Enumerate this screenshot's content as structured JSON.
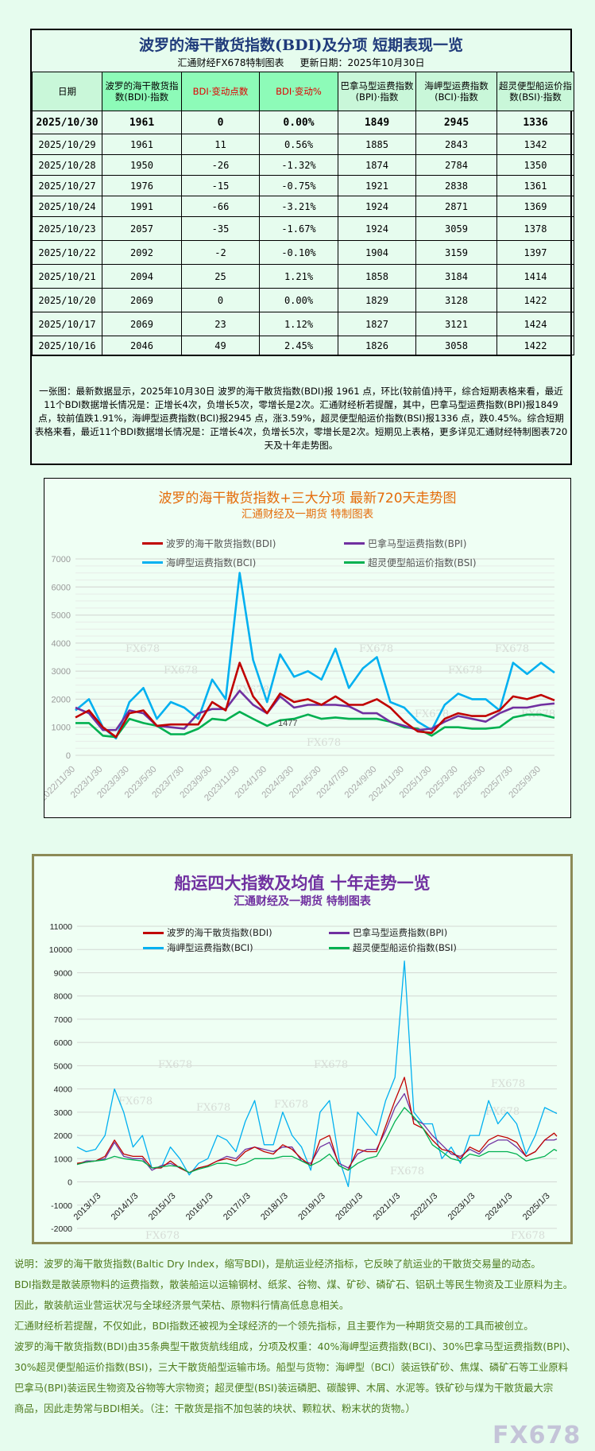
{
  "table": {
    "title": "波罗的海干散货指数(BDI)及分项 短期表现一览",
    "maker": "汇通财经FX678特制图表",
    "update": "更新日期：2025年10月30日",
    "headers": [
      "日期",
      "波罗的海干散货指数(BDI)·指数",
      "BDI·变动点数",
      "BDI·变动%",
      "巴拿马型运费指数(BPI)·指数",
      "海岬型运费指数(BCI)·指数",
      "超灵便型船运价指数(BSI)·指数"
    ],
    "header_colors": {
      "highlight": "#8dfbb8",
      "normal": "#c9f7d9",
      "red_text": "#e00000"
    },
    "rows": [
      [
        "2025/10/30",
        "1961",
        "0",
        "0.00%",
        "1849",
        "2945",
        "1336"
      ],
      [
        "2025/10/29",
        "1961",
        "11",
        "0.56%",
        "1885",
        "2843",
        "1342"
      ],
      [
        "2025/10/28",
        "1950",
        "-26",
        "-1.32%",
        "1874",
        "2784",
        "1350"
      ],
      [
        "2025/10/27",
        "1976",
        "-15",
        "-0.75%",
        "1921",
        "2838",
        "1361"
      ],
      [
        "2025/10/24",
        "1991",
        "-66",
        "-3.21%",
        "1924",
        "2871",
        "1369"
      ],
      [
        "2025/10/23",
        "2057",
        "-35",
        "-1.67%",
        "1924",
        "3059",
        "1378"
      ],
      [
        "2025/10/22",
        "2092",
        "-2",
        "-0.10%",
        "1904",
        "3159",
        "1397"
      ],
      [
        "2025/10/21",
        "2094",
        "25",
        "1.21%",
        "1858",
        "3184",
        "1414"
      ],
      [
        "2025/10/20",
        "2069",
        "0",
        "0.00%",
        "1829",
        "3128",
        "1422"
      ],
      [
        "2025/10/17",
        "2069",
        "23",
        "1.12%",
        "1827",
        "3121",
        "1424"
      ],
      [
        "2025/10/16",
        "2046",
        "49",
        "2.45%",
        "1826",
        "3058",
        "1422"
      ]
    ],
    "summary": "一张图：最新数据显示，2025年10月30日 波罗的海干散货指数(BDI)报 1961 点，环比(较前值)持平，综合短期表格来看，最近11个BDI数据增长情况是：正增长4次，负增长5次，零增长是2次。汇通财经析若提醒，其中，巴拿马型运费指数(BPI)报1849 点，较前值跌1.91%，海岬型运费指数(BCI)报2945 点，涨3.59%，超灵便型船运价指数(BSI)报1336 点，跌0.45%。综合短期表格来看，最近11个BDI数据增长情况是：正增长4次，负增长5次，零增长是2次。短期见上表格，更多详见汇通财经特制图表720天及十年走势图。"
  },
  "chart_data": [
    {
      "type": "line",
      "title": "波罗的海干散货指数+三大分项  最新720天走势图",
      "subtitle": "汇通财经及一期货  特制图表",
      "title_color": "#e46c0a",
      "xlabel": "",
      "ylabel": "",
      "xlim": [
        "2022/11/30",
        "2025/10/30"
      ],
      "ylim": [
        0,
        7000
      ],
      "yticks": [
        "0",
        "1000",
        "2000",
        "3000",
        "4000",
        "5000",
        "6000",
        "7000"
      ],
      "xticks": [
        "2022/11/30",
        "2023/1/30",
        "2023/3/30",
        "2023/5/30",
        "2023/7/30",
        "2023/9/30",
        "2023/11/30",
        "2024/1/30",
        "2024/3/30",
        "2024/5/30",
        "2024/7/30",
        "2024/9/30",
        "2024/11/30",
        "2025/1/30",
        "2025/3/30",
        "2025/5/30",
        "2025/7/30",
        "2025/9/30"
      ],
      "grid": true,
      "legend": "top",
      "annotation": "1477",
      "watermark": "FX678",
      "x": [
        "2022/11/30",
        "2022/12/30",
        "2023/1/30",
        "2023/2/28",
        "2023/3/30",
        "2023/4/30",
        "2023/5/30",
        "2023/6/30",
        "2023/7/30",
        "2023/8/30",
        "2023/9/30",
        "2023/10/30",
        "2023/11/30",
        "2023/12/30",
        "2024/1/30",
        "2024/2/28",
        "2024/3/30",
        "2024/4/30",
        "2024/5/30",
        "2024/6/30",
        "2024/7/30",
        "2024/8/30",
        "2024/9/30",
        "2024/10/30",
        "2024/11/30",
        "2024/12/30",
        "2025/1/30",
        "2025/2/28",
        "2025/3/30",
        "2025/4/30",
        "2025/5/30",
        "2025/6/30",
        "2025/7/30",
        "2025/8/30",
        "2025/9/30",
        "2025/10/30"
      ],
      "series": [
        {
          "name": "波罗的海干散货指数(BDI)",
          "color": "#c00000",
          "values": [
            1350,
            1600,
            1000,
            650,
            1500,
            1600,
            1050,
            1100,
            1100,
            1100,
            1900,
            1600,
            3300,
            2100,
            1500,
            2200,
            1900,
            2000,
            1800,
            2100,
            1800,
            1800,
            2000,
            1700,
            1200,
            850,
            800,
            1300,
            1500,
            1400,
            1400,
            1600,
            2100,
            2000,
            2150,
            1961
          ]
        },
        {
          "name": "巴拿马型运费指数(BPI)",
          "color": "#7030a0",
          "values": [
            1700,
            1500,
            900,
            900,
            1600,
            1500,
            1050,
            1000,
            950,
            1500,
            1650,
            1650,
            2300,
            1800,
            1500,
            2100,
            1700,
            1800,
            1800,
            1800,
            1750,
            1500,
            1500,
            1200,
            1050,
            900,
            950,
            1200,
            1400,
            1300,
            1200,
            1500,
            1700,
            1700,
            1800,
            1849
          ]
        },
        {
          "name": "海岬型运费指数(BCI)",
          "color": "#00b0f0",
          "values": [
            1600,
            2000,
            1000,
            600,
            1900,
            2400,
            1300,
            1900,
            1700,
            1300,
            2700,
            2000,
            6500,
            3400,
            1900,
            3600,
            2800,
            3000,
            2700,
            3800,
            2400,
            3100,
            3500,
            1900,
            1700,
            1200,
            900,
            1800,
            2200,
            2000,
            2000,
            1600,
            3300,
            2900,
            3300,
            2945
          ]
        },
        {
          "name": "超灵便型船运价指数(BSI)",
          "color": "#00b050",
          "values": [
            1150,
            1150,
            700,
            650,
            1300,
            1150,
            1050,
            750,
            750,
            950,
            1300,
            1250,
            1550,
            1300,
            1050,
            1250,
            1300,
            1450,
            1300,
            1350,
            1300,
            1300,
            1300,
            1200,
            1000,
            950,
            700,
            1000,
            1000,
            950,
            950,
            1000,
            1350,
            1450,
            1450,
            1336
          ]
        }
      ]
    },
    {
      "type": "line",
      "title": "船运四大指数及均值 十年走势一览",
      "subtitle": "汇通财经及一期货 特制图表",
      "title_color": "#7030a0",
      "xlabel": "",
      "ylabel": "",
      "xlim": [
        "2013/1/3",
        "2025/10/30"
      ],
      "ylim": [
        -2000,
        11000
      ],
      "yticks": [
        "-2000",
        "-1000",
        "0",
        "1000",
        "2000",
        "3000",
        "4000",
        "5000",
        "6000",
        "7000",
        "8000",
        "9000",
        "10000",
        "11000"
      ],
      "xticks": [
        "2013/1/3",
        "2014/1/3",
        "2015/1/3",
        "2016/1/3",
        "2017/1/3",
        "2018/1/3",
        "2019/1/3",
        "2020/1/3",
        "2021/1/3",
        "2022/1/3",
        "2023/1/3",
        "2024/1/3",
        "2025/1/3"
      ],
      "grid": true,
      "legend": "top",
      "watermark": "FX678",
      "x": [
        "2013/1/3",
        "2013/4/3",
        "2013/7/3",
        "2013/10/3",
        "2014/1/3",
        "2014/4/3",
        "2014/7/3",
        "2014/10/3",
        "2015/1/3",
        "2015/4/3",
        "2015/7/3",
        "2015/10/3",
        "2016/1/3",
        "2016/4/3",
        "2016/7/3",
        "2016/10/3",
        "2017/1/3",
        "2017/4/3",
        "2017/7/3",
        "2017/10/3",
        "2018/1/3",
        "2018/4/3",
        "2018/7/3",
        "2018/10/3",
        "2019/1/3",
        "2019/4/3",
        "2019/7/3",
        "2019/10/3",
        "2020/1/3",
        "2020/4/3",
        "2020/7/3",
        "2020/10/3",
        "2021/1/3",
        "2021/4/3",
        "2021/7/3",
        "2021/10/3",
        "2022/1/3",
        "2022/4/3",
        "2022/7/3",
        "2022/10/3",
        "2023/1/3",
        "2023/4/3",
        "2023/7/3",
        "2023/10/3",
        "2024/1/3",
        "2024/4/3",
        "2024/7/3",
        "2024/10/3",
        "2025/1/3",
        "2025/4/3",
        "2025/7/3",
        "2025/10/3",
        "2025/10/30"
      ],
      "series": [
        {
          "name": "波罗的海干散货指数(BDI)",
          "color": "#c00000",
          "values": [
            800,
            850,
            900,
            1100,
            1800,
            1200,
            1100,
            1100,
            600,
            600,
            900,
            600,
            400,
            600,
            700,
            900,
            1000,
            900,
            1300,
            1500,
            1300,
            1200,
            1600,
            1400,
            1000,
            700,
            1800,
            2000,
            700,
            500,
            1400,
            1300,
            1300,
            2400,
            3500,
            4500,
            2500,
            2300,
            1800,
            1400,
            1300,
            1000,
            1500,
            1300,
            1800,
            2000,
            1900,
            1700,
            1100,
            1300,
            1800,
            2100,
            1961
          ]
        },
        {
          "name": "巴拿马型运费指数(BPI)",
          "color": "#7030a0",
          "values": [
            750,
            900,
            900,
            1000,
            1700,
            1100,
            1000,
            1000,
            500,
            700,
            800,
            600,
            400,
            600,
            700,
            900,
            1100,
            1000,
            1400,
            1500,
            1400,
            1300,
            1500,
            1500,
            900,
            800,
            1500,
            1700,
            800,
            600,
            1200,
            1400,
            1400,
            2200,
            3200,
            3800,
            2700,
            2500,
            2000,
            1600,
            1200,
            1100,
            1400,
            1200,
            1600,
            1800,
            1800,
            1500,
            1100,
            1300,
            1800,
            1800,
            1849
          ]
        },
        {
          "name": "海岬型运费指数(BCI)",
          "color": "#00b0f0",
          "values": [
            1500,
            1300,
            1400,
            2000,
            4000,
            3000,
            1500,
            2000,
            600,
            600,
            1500,
            1000,
            300,
            800,
            1000,
            2000,
            1800,
            1300,
            2600,
            3500,
            1600,
            1600,
            3000,
            2000,
            1500,
            500,
            3000,
            3500,
            1000,
            -200,
            3000,
            2500,
            2000,
            3500,
            4500,
            9500,
            3000,
            2500,
            2500,
            1000,
            1500,
            800,
            2000,
            2000,
            3500,
            2500,
            3000,
            2500,
            1200,
            2000,
            3200,
            3000,
            2945
          ]
        },
        {
          "name": "超灵便型船运价指数(BSI)",
          "color": "#00b050",
          "values": [
            750,
            850,
            900,
            950,
            1100,
            1000,
            950,
            900,
            600,
            650,
            700,
            650,
            400,
            550,
            650,
            800,
            800,
            700,
            800,
            1000,
            1000,
            1000,
            1100,
            1100,
            900,
            700,
            900,
            1200,
            700,
            500,
            800,
            1000,
            1100,
            1800,
            2600,
            3200,
            2800,
            2300,
            1600,
            1300,
            1000,
            900,
            1200,
            1100,
            1300,
            1300,
            1300,
            1200,
            900,
            1000,
            1100,
            1400,
            1336
          ]
        }
      ]
    }
  ],
  "notes": [
    "说明：波罗的海干散货指数(Baltic Dry Index，缩写BDI)，是航运业经济指标，它反映了航运业的干散货交易量的动态。",
    "BDI指数是散装原物料的运费指数，散装船运以运输钢材、纸浆、谷物、煤、矿砂、磷矿石、铝矾土等民生物资及工业原料为主。",
    "因此，散装航运业营运状况与全球经济景气荣枯、原物料行情高低息息相关。",
    "汇通财经析若提醒，不仅如此，BDI指数还被视为全球经济的一个领先指标，且主要作为一种期货交易的工具而被创立。",
    "波罗的海干散货指数(BDI)由35条典型干散货航线组成，分项及权重：40%海岬型运费指数(BCI)、30%巴拿马型运费指数(BPI)、",
    "30%超灵便型船运价指数(BSI)，三大干散货船型运输市场。船型与货物：海岬型（BCI）装运铁矿砂、焦煤、磷矿石等工业原料",
    "巴拿马(BPI)装运民生物资及谷物等大宗物资；超灵便型(BSI)装运磷肥、碳酸钾、木屑、水泥等。铁矿砂与煤为干散货最大宗",
    "商品，因此走势常与BDI相关。（注：干散货是指不加包装的块状、颗粒状、粉末状的货物。）"
  ],
  "watermark": "FX678"
}
